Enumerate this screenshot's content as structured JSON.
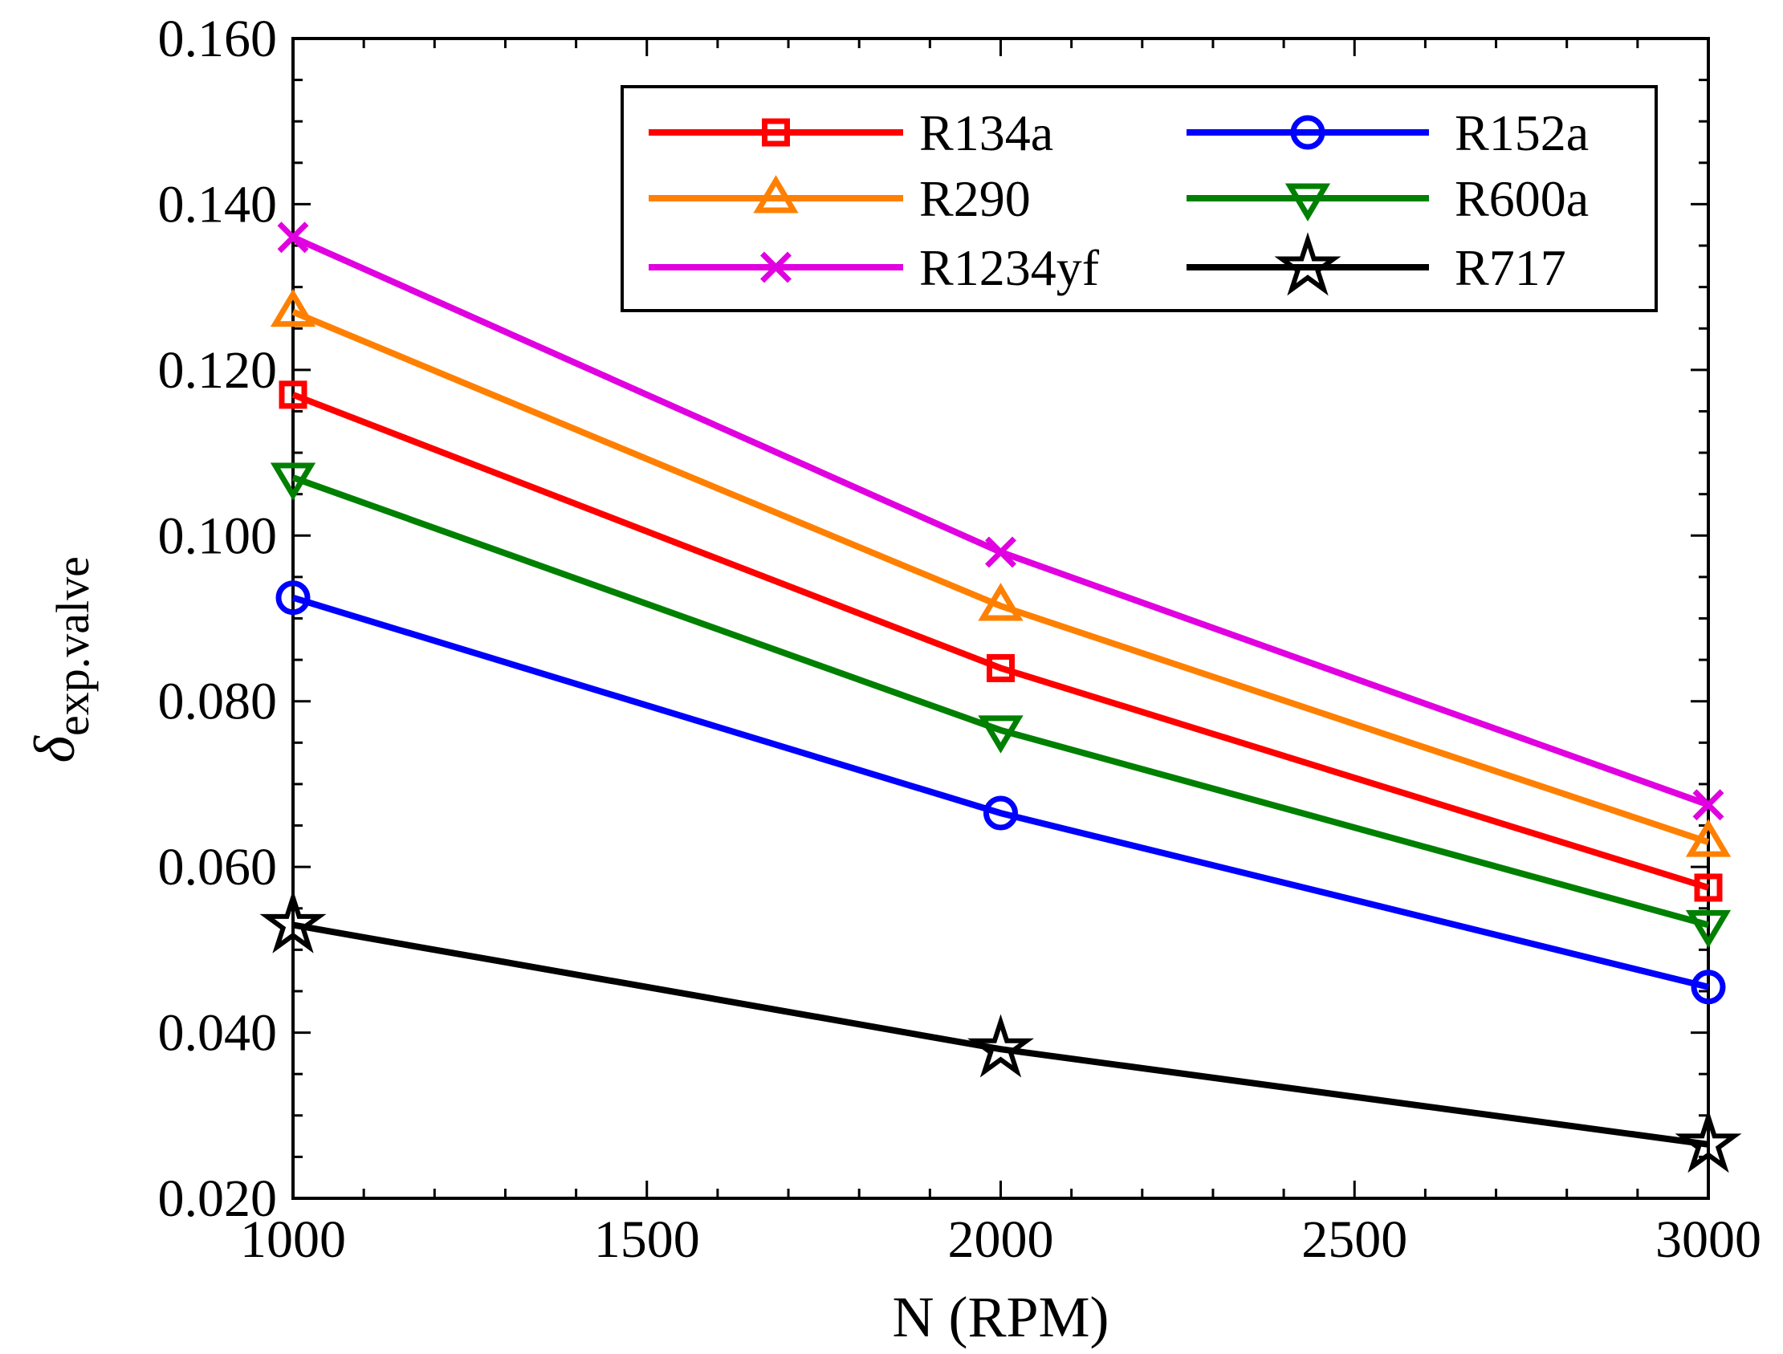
{
  "chart_data": {
    "type": "line",
    "xlabel": "N (RPM)",
    "ylabel_main": "δ",
    "ylabel_sub": "exp.valve",
    "x": [
      1000,
      2000,
      3000
    ],
    "xlim": [
      1000,
      3000
    ],
    "ylim": [
      0.02,
      0.16
    ],
    "x_ticks": [
      1000,
      1500,
      2000,
      2500,
      3000
    ],
    "x_tick_labels": [
      "1000",
      "1500",
      "2000",
      "2500",
      "3000"
    ],
    "y_ticks": [
      0.02,
      0.04,
      0.06,
      0.08,
      0.1,
      0.12,
      0.14,
      0.16
    ],
    "y_tick_labels": [
      "0.020",
      "0.040",
      "0.060",
      "0.080",
      "0.100",
      "0.120",
      "0.140",
      "0.160"
    ],
    "grid": false,
    "legend_position": "top-right",
    "series": [
      {
        "name": "R134a",
        "values": [
          0.117,
          0.084,
          0.0575
        ],
        "color": "#ff0000",
        "marker": "square"
      },
      {
        "name": "R152a",
        "values": [
          0.0925,
          0.0665,
          0.0455
        ],
        "color": "#0000ff",
        "marker": "circle"
      },
      {
        "name": "R290",
        "values": [
          0.127,
          0.0915,
          0.063
        ],
        "color": "#ff8000",
        "marker": "triangle-up"
      },
      {
        "name": "R600a",
        "values": [
          0.107,
          0.0765,
          0.053
        ],
        "color": "#008000",
        "marker": "triangle-down"
      },
      {
        "name": "R1234yf",
        "values": [
          0.136,
          0.098,
          0.0675
        ],
        "color": "#e000e0",
        "marker": "x"
      },
      {
        "name": "R717",
        "values": [
          0.053,
          0.038,
          0.0265
        ],
        "color": "#000000",
        "marker": "star"
      }
    ]
  }
}
